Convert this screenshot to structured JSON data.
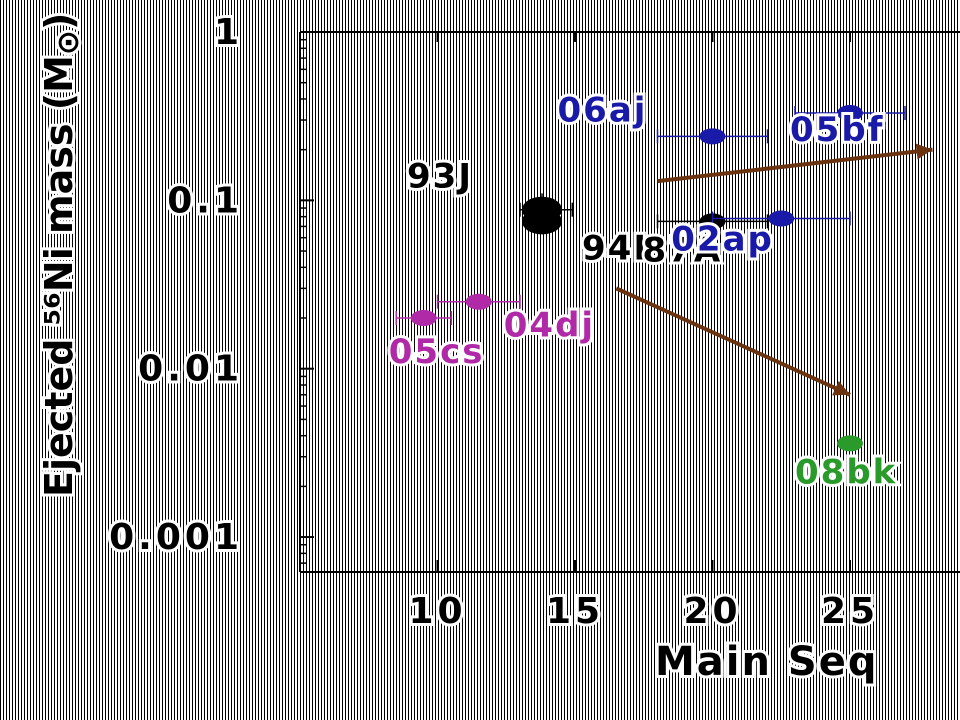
{
  "chart_data": {
    "type": "scatter",
    "xlabel": "Main Seq",
    "ylabel": "Ejected ⁵⁶Ni mass (M",
    "ylabel_sun": "⊙",
    "ylabel_close": ")",
    "x_scale": "linear",
    "y_scale": "log",
    "xlim": [
      5,
      29
    ],
    "ylim": [
      0.00062,
      1
    ],
    "x_ticks": [
      {
        "value": 10,
        "label": "10"
      },
      {
        "value": 15,
        "label": "15"
      },
      {
        "value": 20,
        "label": "20"
      },
      {
        "value": 25,
        "label": "25"
      }
    ],
    "y_ticks": [
      {
        "value": 1,
        "label": "1"
      },
      {
        "value": 0.1,
        "label": "0.1"
      },
      {
        "value": 0.01,
        "label": "0.01"
      },
      {
        "value": 0.001,
        "label": "0.001"
      }
    ],
    "points": [
      {
        "label": "93J",
        "x": 13.8,
        "y": 0.088,
        "xerr": [
          13.0,
          14.9
        ],
        "yerr": [
          0.068,
          0.11
        ],
        "color": "#000000",
        "size": "large"
      },
      {
        "label": "94I",
        "x": 13.8,
        "y": 0.075,
        "color": "#000000",
        "size": "large"
      },
      {
        "label": "87A",
        "x": 20.0,
        "y": 0.075,
        "xerr": [
          18.0,
          22.0
        ],
        "color": "#000000",
        "size": "small"
      },
      {
        "label": "06aj",
        "x": 20.0,
        "y": 0.24,
        "xerr": [
          18.0,
          22.0
        ],
        "color": "#1a1aa8",
        "size": "small"
      },
      {
        "label": "05bf",
        "x": 25.0,
        "y": 0.33,
        "xerr": [
          23.0,
          27.0
        ],
        "color": "#1a1aa8",
        "size": "small"
      },
      {
        "label": "02ap",
        "x": 22.5,
        "y": 0.078,
        "xerr": [
          20.0,
          25.0
        ],
        "color": "#1a1aa8",
        "size": "small"
      },
      {
        "label": "04dj",
        "x": 11.5,
        "y": 0.025,
        "xerr": [
          10.0,
          13.0
        ],
        "color": "#b02aa8",
        "size": "small"
      },
      {
        "label": "05cs",
        "x": 9.5,
        "y": 0.02,
        "xerr": [
          8.5,
          10.5
        ],
        "color": "#b02aa8",
        "size": "small"
      },
      {
        "label": "08bk",
        "x": 25.0,
        "y": 0.0036,
        "color": "#2a9a2a",
        "size": "small"
      }
    ],
    "arrows": [
      {
        "from": [
          16.5,
          0.03
        ],
        "to": [
          25.0,
          0.007
        ],
        "color": "#6b3410"
      },
      {
        "from": [
          18.0,
          0.13
        ],
        "to": [
          28.0,
          0.2
        ],
        "color": "#6b3410"
      }
    ]
  }
}
